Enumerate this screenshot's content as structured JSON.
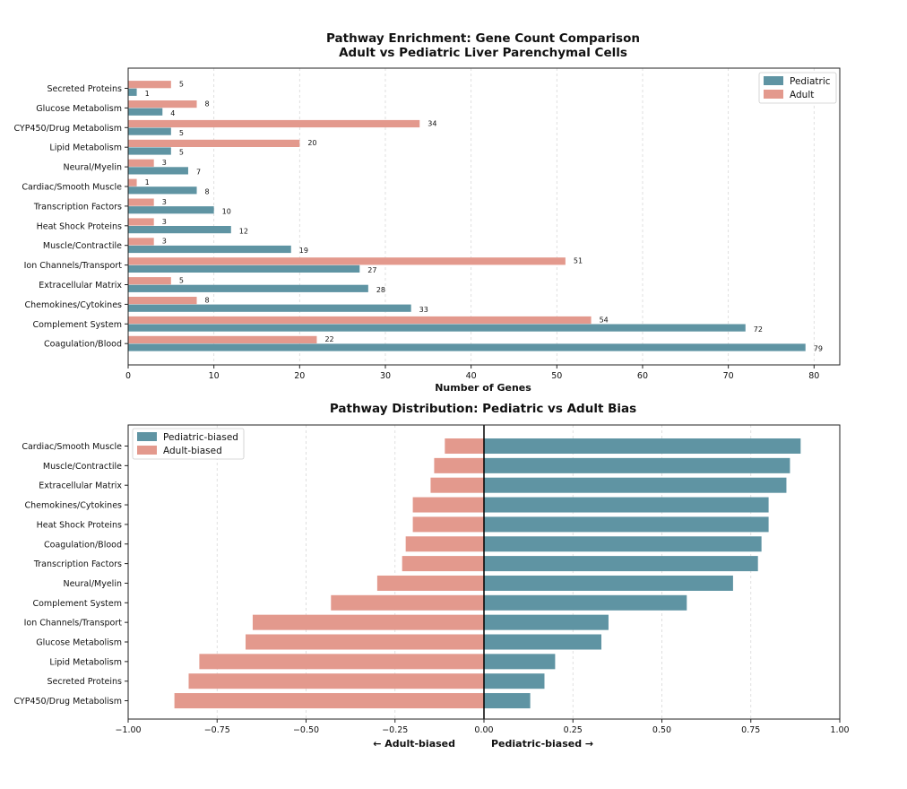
{
  "colors": {
    "pediatric": "#5f94a3",
    "adult": "#e3998d",
    "grid": "#d8d8d8",
    "axis": "#222222"
  },
  "chart_data": [
    {
      "type": "bar",
      "orientation": "horizontal",
      "title": "Pathway Enrichment: Gene Count Comparison",
      "subtitle": "Adult vs Pediatric Liver Parenchymal Cells",
      "xlabel": "Number of Genes",
      "ylabel": "",
      "xlim": [
        0,
        83
      ],
      "xticks": [
        "0",
        "10",
        "20",
        "30",
        "40",
        "50",
        "60",
        "70",
        "80"
      ],
      "grid": "x-dashed",
      "legend_position": "top-right",
      "categories": [
        "Secreted Proteins",
        "Glucose Metabolism",
        "CYP450/Drug Metabolism",
        "Lipid Metabolism",
        "Neural/Myelin",
        "Cardiac/Smooth Muscle",
        "Transcription Factors",
        "Heat Shock Proteins",
        "Muscle/Contractile",
        "Ion Channels/Transport",
        "Extracellular Matrix",
        "Chemokines/Cytokines",
        "Complement System",
        "Coagulation/Blood"
      ],
      "series": [
        {
          "name": "Pediatric",
          "values": [
            1,
            4,
            5,
            5,
            7,
            8,
            10,
            12,
            19,
            27,
            28,
            33,
            72,
            79
          ]
        },
        {
          "name": "Adult",
          "values": [
            5,
            8,
            34,
            20,
            3,
            1,
            3,
            3,
            3,
            51,
            5,
            8,
            54,
            22
          ]
        }
      ]
    },
    {
      "type": "bar",
      "orientation": "horizontal",
      "title": "Pathway Distribution: Pediatric vs Adult Bias",
      "xlabel_left": "← Adult-biased",
      "xlabel_right": "Pediatric-biased →",
      "xlim": [
        -1.0,
        1.0
      ],
      "xticks": [
        "−1.00",
        "−0.75",
        "−0.50",
        "−0.25",
        "0.00",
        "0.25",
        "0.50",
        "0.75",
        "1.00"
      ],
      "grid": "x-dashed",
      "legend_position": "top-left",
      "categories": [
        "Cardiac/Smooth Muscle",
        "Muscle/Contractile",
        "Extracellular Matrix",
        "Chemokines/Cytokines",
        "Heat Shock Proteins",
        "Coagulation/Blood",
        "Transcription Factors",
        "Neural/Myelin",
        "Complement System",
        "Ion Channels/Transport",
        "Glucose Metabolism",
        "Lipid Metabolism",
        "Secreted Proteins",
        "CYP450/Drug Metabolism"
      ],
      "series": [
        {
          "name": "Pediatric-biased",
          "values": [
            0.89,
            0.86,
            0.85,
            0.8,
            0.8,
            0.78,
            0.77,
            0.7,
            0.57,
            0.35,
            0.33,
            0.2,
            0.17,
            0.13
          ]
        },
        {
          "name": "Adult-biased",
          "values": [
            -0.11,
            -0.14,
            -0.15,
            -0.2,
            -0.2,
            -0.22,
            -0.23,
            -0.3,
            -0.43,
            -0.65,
            -0.67,
            -0.8,
            -0.83,
            -0.87
          ]
        }
      ]
    }
  ]
}
